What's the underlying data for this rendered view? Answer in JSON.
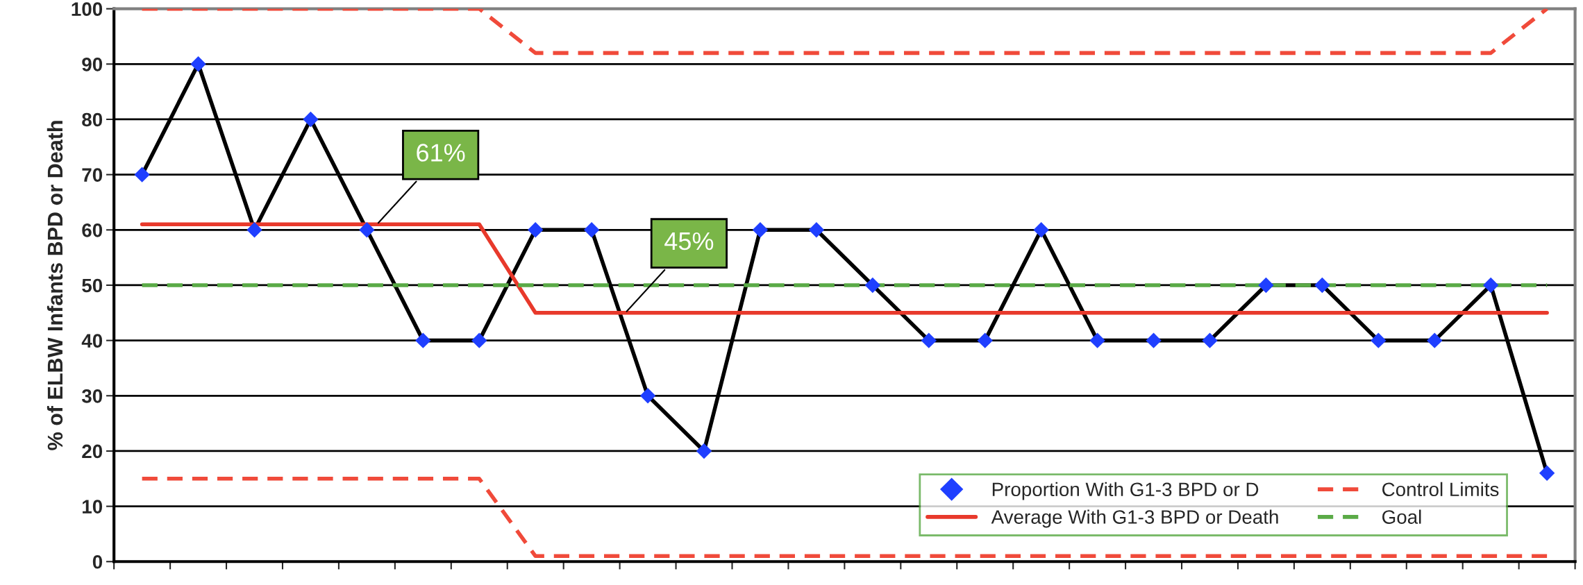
{
  "chart_data": {
    "type": "line",
    "ylabel": "% of ELBW Infants BPD or Death",
    "categories": [
      null,
      null,
      null,
      null,
      null,
      null,
      null,
      null,
      null,
      null,
      null,
      null,
      null,
      null,
      null,
      null,
      null,
      null,
      null,
      null,
      null,
      null,
      null,
      null,
      null,
      null
    ],
    "series": [
      {
        "name": "Proportion With G1-3 BPD or D",
        "color": "#000000",
        "marker": "diamond",
        "colors": [
          "#1f3fff",
          "#1f3fff",
          "#1f3fff",
          "#1f3fff",
          "#1f3fff",
          "#1f3fff",
          "#1f3fff",
          "#1f3fff",
          "#1f3fff",
          "#1f3fff",
          "#1f3fff",
          "#1f3fff",
          "#1f3fff",
          "#1f3fff",
          "#1f3fff",
          "#1f3fff",
          "#1f3fff",
          "#1f3fff",
          "#1f3fff",
          "#1f3fff",
          "#1f3fff",
          "#1f3fff",
          "#1f3fff",
          "#1f3fff",
          "#1f3fff",
          "#1f3fff"
        ],
        "values": [
          70,
          90,
          60,
          80,
          60,
          40,
          40,
          60,
          60,
          30,
          20,
          60,
          60,
          50,
          40,
          40,
          60,
          40,
          40,
          40,
          50,
          50,
          40,
          40,
          50,
          16
        ]
      },
      {
        "name": "Average With G1-3 BPD or Death",
        "color": "#e8392b",
        "line_style": "solid",
        "values": [
          61,
          61,
          61,
          61,
          61,
          61,
          61,
          45,
          45,
          45,
          45,
          45,
          45,
          45,
          45,
          45,
          45,
          45,
          45,
          45,
          45,
          45,
          45,
          45,
          45,
          45
        ]
      },
      {
        "name": "Control Limits",
        "color": "#f04a3a",
        "line_style": "dashed",
        "values": [
          100,
          100,
          100,
          100,
          100,
          100,
          100,
          92,
          92,
          92,
          92,
          92,
          92,
          92,
          92,
          92,
          92,
          92,
          92,
          92,
          92,
          92,
          92,
          92,
          92,
          100
        ]
      },
      {
        "color": "#f04a3a",
        "line_style": "dashed",
        "values": [
          15,
          15,
          15,
          15,
          15,
          15,
          15,
          1,
          1,
          1,
          1,
          1,
          1,
          1,
          1,
          1,
          1,
          1,
          1,
          1,
          1,
          1,
          1,
          1,
          1,
          1
        ]
      },
      {
        "name": "Goal",
        "color": "#5aaa46",
        "line_style": "dashed",
        "values": [
          50,
          50,
          50,
          50,
          50,
          50,
          50,
          50,
          50,
          50,
          50,
          50,
          50,
          50,
          50,
          50,
          50,
          50,
          50,
          50,
          50,
          50,
          50,
          50,
          50,
          50
        ]
      }
    ],
    "annotations": [
      {
        "text": "61%",
        "y": 61
      },
      {
        "text": "45%",
        "y": 45
      }
    ],
    "ylim": [
      0,
      100
    ],
    "yticks": [
      0,
      10,
      20,
      30,
      40,
      50,
      60,
      70,
      80,
      90,
      100
    ],
    "tick_labels": "y",
    "grid": "y",
    "legend": "bottom right"
  }
}
